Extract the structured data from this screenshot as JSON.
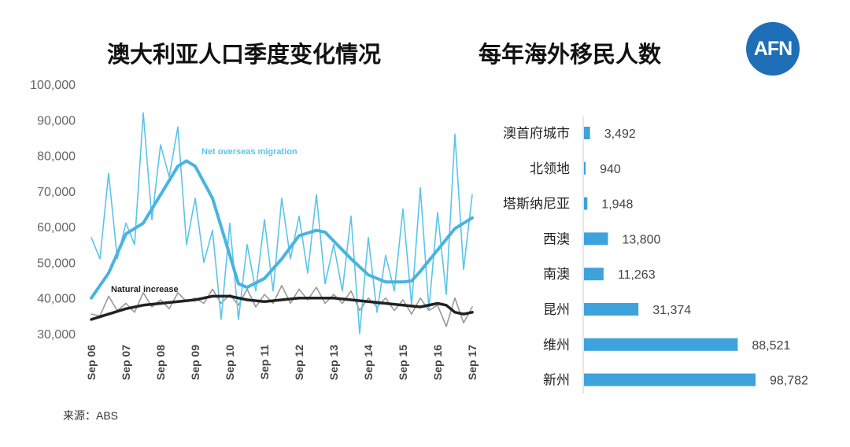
{
  "titles": {
    "left": "澳大利亚人口季度变化情况",
    "right": "每年海外移民人数"
  },
  "logo": {
    "text": "AFN",
    "color": "#1e6fb8"
  },
  "source": "来源：ABS",
  "colors": {
    "migration": "#5bc4ea",
    "migration_trend": "#4ab3e0",
    "natural": "#999999",
    "natural_trend": "#222222",
    "bar": "#3ea3dc"
  },
  "chart_data": [
    {
      "type": "line",
      "title": "澳大利亚人口季度变化情况",
      "ylim": [
        30000,
        100000
      ],
      "yticks": [
        "100,000",
        "90,000",
        "80,000",
        "70,000",
        "60,000",
        "50,000",
        "40,000",
        "30,000"
      ],
      "ytick_values": [
        100000,
        90000,
        80000,
        70000,
        60000,
        50000,
        40000,
        30000
      ],
      "xlim": [
        2006.0,
        2017.0
      ],
      "xticks": [
        "Sep 06",
        "Sep 07",
        "Sep 08",
        "Sep 09",
        "Sep 10",
        "Sep 11",
        "Sep 12",
        "Sep 13",
        "Sep 14",
        "Sep 15",
        "Sep 16",
        "Sep 17"
      ],
      "xtick_values": [
        2006,
        2007,
        2008,
        2009,
        2010,
        2011,
        2012,
        2013,
        2014,
        2015,
        2016,
        2017
      ],
      "annotations": [
        "Net overseas migration",
        "Natural increase"
      ],
      "series": [
        {
          "name": "Net overseas migration",
          "x": [
            2006.0,
            2006.25,
            2006.5,
            2006.75,
            2007.0,
            2007.25,
            2007.5,
            2007.75,
            2008.0,
            2008.25,
            2008.5,
            2008.75,
            2009.0,
            2009.25,
            2009.5,
            2009.75,
            2010.0,
            2010.25,
            2010.5,
            2010.75,
            2011.0,
            2011.25,
            2011.5,
            2011.75,
            2012.0,
            2012.25,
            2012.5,
            2012.75,
            2013.0,
            2013.25,
            2013.5,
            2013.75,
            2014.0,
            2014.25,
            2014.5,
            2014.75,
            2015.0,
            2015.25,
            2015.5,
            2015.75,
            2016.0,
            2016.25,
            2016.5,
            2016.75,
            2017.0
          ],
          "y": [
            57000,
            51000,
            75000,
            51000,
            61000,
            55000,
            92000,
            62000,
            83000,
            74000,
            88000,
            55000,
            68000,
            50000,
            59000,
            34000,
            61000,
            34000,
            55000,
            42000,
            62000,
            42000,
            68000,
            51000,
            63000,
            47000,
            69000,
            44000,
            55000,
            42000,
            63000,
            30000,
            57000,
            36000,
            52000,
            42000,
            65000,
            38000,
            71000,
            37000,
            64000,
            41000,
            86000,
            48000,
            69000
          ]
        },
        {
          "name": "Net overseas migration trend",
          "x": [
            2006.0,
            2006.5,
            2007.0,
            2007.5,
            2008.0,
            2008.5,
            2008.75,
            2009.0,
            2009.5,
            2010.0,
            2010.25,
            2010.5,
            2011.0,
            2011.5,
            2012.0,
            2012.5,
            2012.75,
            2013.0,
            2013.5,
            2014.0,
            2014.5,
            2015.0,
            2015.25,
            2015.5,
            2016.0,
            2016.5,
            2017.0
          ],
          "y": [
            40000,
            47000,
            58000,
            61000,
            69000,
            77000,
            78500,
            77000,
            68000,
            52000,
            44000,
            43000,
            45500,
            51000,
            57500,
            59000,
            58500,
            56000,
            51000,
            46500,
            44500,
            44500,
            44800,
            47500,
            53500,
            59500,
            62500
          ]
        },
        {
          "name": "Natural increase",
          "x": [
            2006.0,
            2006.25,
            2006.5,
            2006.75,
            2007.0,
            2007.25,
            2007.5,
            2007.75,
            2008.0,
            2008.25,
            2008.5,
            2008.75,
            2009.0,
            2009.25,
            2009.5,
            2009.75,
            2010.0,
            2010.25,
            2010.5,
            2010.75,
            2011.0,
            2011.25,
            2011.5,
            2011.75,
            2012.0,
            2012.25,
            2012.5,
            2012.75,
            2013.0,
            2013.25,
            2013.5,
            2013.75,
            2014.0,
            2014.25,
            2014.5,
            2014.75,
            2015.0,
            2015.25,
            2015.5,
            2015.75,
            2016.0,
            2016.25,
            2016.5,
            2016.75,
            2017.0
          ],
          "y": [
            35500,
            35000,
            40500,
            36500,
            38500,
            36000,
            41500,
            37500,
            39500,
            37000,
            41500,
            39000,
            40000,
            38500,
            42500,
            38500,
            41000,
            38000,
            42500,
            37500,
            41000,
            38500,
            43500,
            38500,
            42500,
            39500,
            43000,
            38500,
            41000,
            38500,
            42000,
            36500,
            40000,
            37500,
            40000,
            36500,
            39500,
            35500,
            40000,
            36500,
            38000,
            32000,
            40000,
            33000,
            37500
          ]
        },
        {
          "name": "Natural increase trend",
          "x": [
            2006.0,
            2006.5,
            2007.0,
            2007.5,
            2008.0,
            2008.5,
            2009.0,
            2009.5,
            2010.0,
            2010.5,
            2011.0,
            2011.5,
            2012.0,
            2012.5,
            2013.0,
            2013.5,
            2014.0,
            2014.5,
            2015.0,
            2015.5,
            2016.0,
            2016.25,
            2016.5,
            2016.75,
            2017.0
          ],
          "y": [
            34000,
            35500,
            37000,
            38000,
            38500,
            39000,
            39500,
            40500,
            40500,
            39500,
            39000,
            39500,
            40000,
            40000,
            40000,
            39500,
            39000,
            38500,
            38000,
            37500,
            38500,
            38000,
            36000,
            35500,
            36000
          ]
        }
      ]
    },
    {
      "type": "bar",
      "orientation": "horizontal",
      "title": "每年海外移民人数",
      "categories": [
        "澳首府城市",
        "北领地",
        "塔斯纳尼亚",
        "西澳",
        "南澳",
        "昆州",
        "维州",
        "新州"
      ],
      "values": [
        3492,
        940,
        1948,
        13800,
        11263,
        31374,
        88521,
        98782
      ],
      "value_labels": [
        "3,492",
        "940",
        "1,948",
        "13,800",
        "11,263",
        "31,374",
        "88,521",
        "98,782"
      ]
    }
  ]
}
